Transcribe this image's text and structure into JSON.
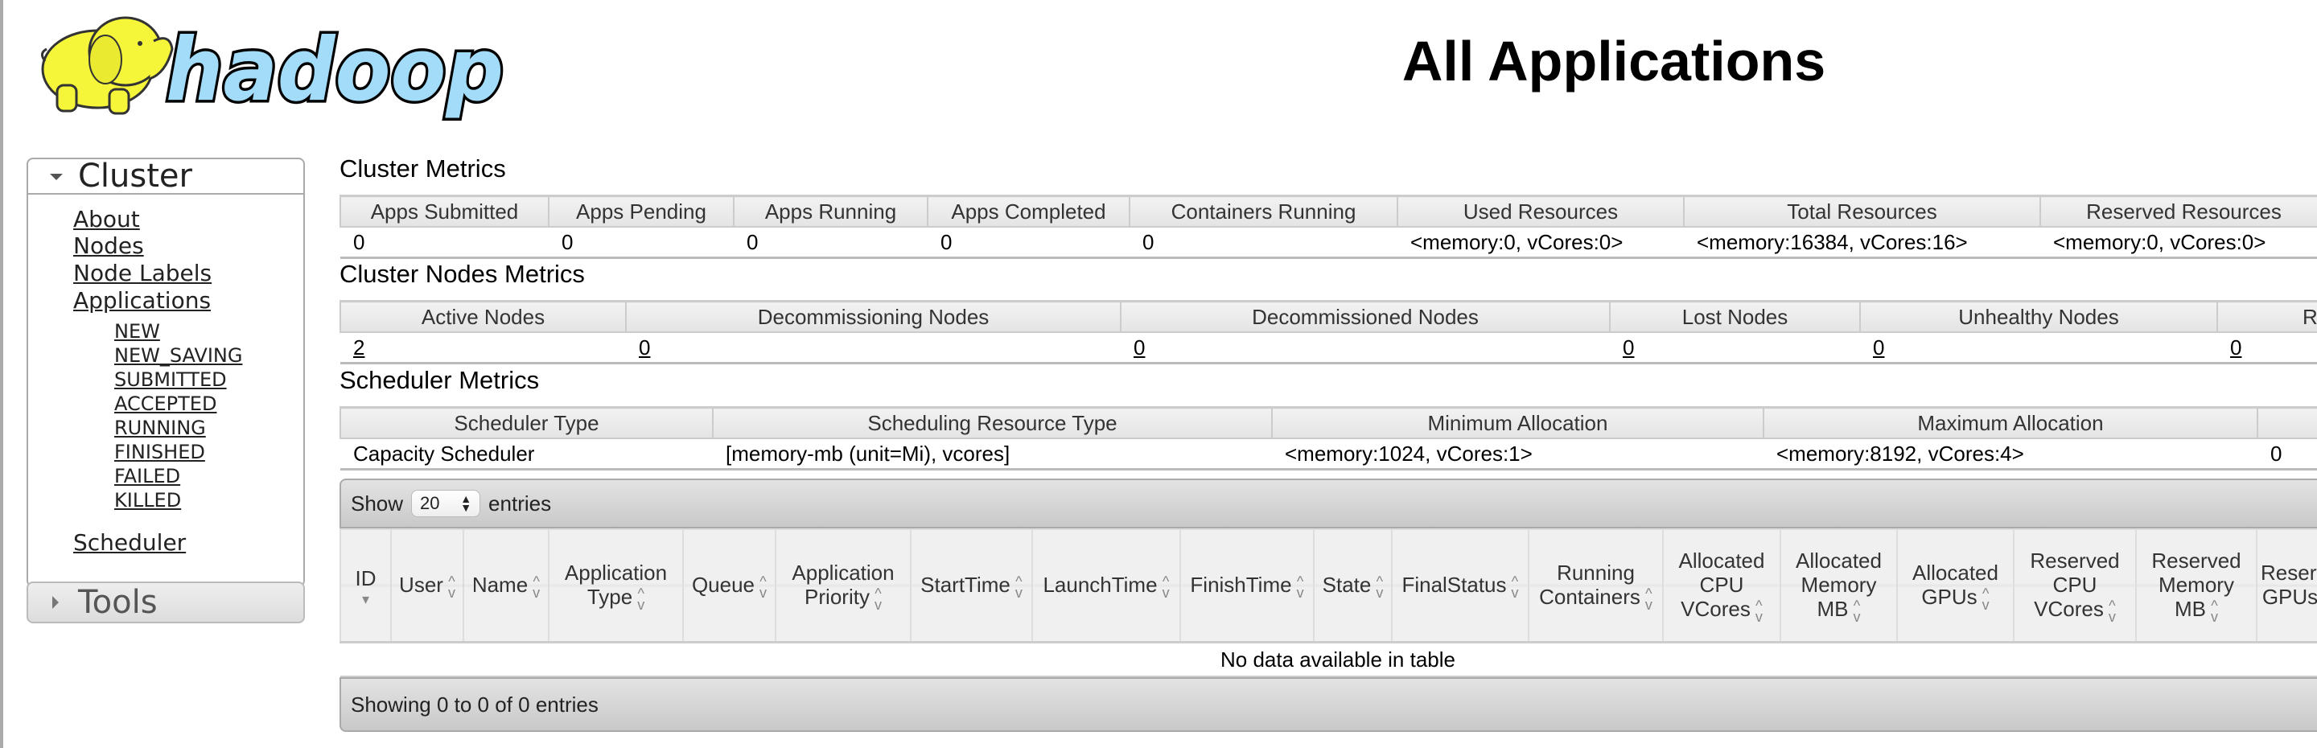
{
  "logo": {
    "text": "hadoop",
    "colors": {
      "elephant": "#f5f53a",
      "text_fill": "#a3dcf8",
      "outline": "#000000"
    }
  },
  "page_title": "All Applications",
  "nav": {
    "cluster": {
      "label": "Cluster",
      "expanded": true,
      "links": [
        "About",
        "Nodes",
        "Node Labels",
        "Applications"
      ],
      "app_states": [
        "NEW",
        "NEW_SAVING",
        "SUBMITTED",
        "ACCEPTED",
        "RUNNING",
        "FINISHED",
        "FAILED",
        "KILLED"
      ],
      "scheduler": "Scheduler"
    },
    "tools": {
      "label": "Tools",
      "expanded": false
    }
  },
  "cluster_metrics": {
    "title": "Cluster Metrics",
    "headers": [
      "Apps Submitted",
      "Apps Pending",
      "Apps Running",
      "Apps Completed",
      "Containers Running",
      "Used Resources",
      "Total Resources",
      "Reserved Resources"
    ],
    "values": [
      "0",
      "0",
      "0",
      "0",
      "0",
      "<memory:0, vCores:0>",
      "<memory:16384, vCores:16>",
      "<memory:0, vCores:0>"
    ]
  },
  "cluster_nodes_metrics": {
    "title": "Cluster Nodes Metrics",
    "headers": [
      "Active Nodes",
      "Decommissioning Nodes",
      "Decommissioned Nodes",
      "Lost Nodes",
      "Unhealthy Nodes",
      "R"
    ],
    "values": [
      "2",
      "0",
      "0",
      "0",
      "0",
      "0"
    ]
  },
  "scheduler_metrics": {
    "title": "Scheduler Metrics",
    "headers": [
      "Scheduler Type",
      "Scheduling Resource Type",
      "Minimum Allocation",
      "Maximum Allocation",
      ""
    ],
    "values": [
      "Capacity Scheduler",
      "[memory-mb (unit=Mi), vcores]",
      "<memory:1024, vCores:1>",
      "<memory:8192, vCores:4>",
      "0"
    ]
  },
  "apps_table": {
    "show_label": "Show",
    "page_size": "20",
    "entries_label": "entries",
    "columns": [
      "ID",
      "User",
      "Name",
      "Application Type",
      "Queue",
      "Application Priority",
      "StartTime",
      "LaunchTime",
      "FinishTime",
      "State",
      "FinalStatus",
      "Running Containers",
      "Allocated CPU VCores",
      "Allocated Memory MB",
      "Allocated GPUs",
      "Reserved CPU VCores",
      "Reserved Memory MB",
      "Reserved GPUs"
    ],
    "sorted_column": "ID",
    "empty_message": "No data available in table",
    "info": "Showing 0 to 0 of 0 entries"
  }
}
